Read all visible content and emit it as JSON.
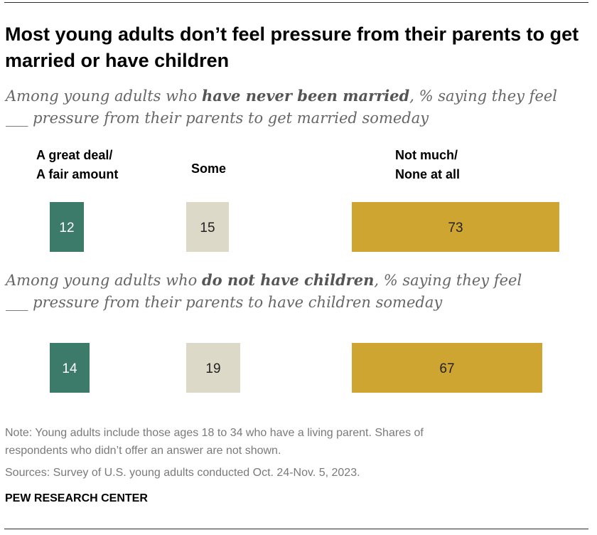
{
  "title": "Most young adults don’t feel pressure from their parents to get married or have children",
  "colors": {
    "great_deal": "#3c7b6a",
    "some": "#ddd9c8",
    "not_much": "#cfa532",
    "label_light": "#ffffff",
    "label_dark": "#222222"
  },
  "chart_data": {
    "type": "bar",
    "orientation": "horizontal-stacked-segments",
    "categories": [
      "A great deal/ A fair amount",
      "Some",
      "Not much/ None at all"
    ],
    "category_lines": [
      [
        "A great deal/",
        "A fair amount"
      ],
      [
        "Some"
      ],
      [
        "Not much/",
        "None at all"
      ]
    ],
    "panels": [
      {
        "subtitle_parts": {
          "pre": "Among young adults who ",
          "bold": "have never been married",
          "post": ", % saying they feel",
          "line2": "___ pressure from their parents to get married someday"
        },
        "values": [
          12,
          15,
          73
        ]
      },
      {
        "subtitle_parts": {
          "pre": "Among young adults who ",
          "bold": "do not have children",
          "post": ", % saying they feel",
          "line2": "___ pressure from their parents to have children someday"
        },
        "values": [
          14,
          19,
          67
        ]
      }
    ],
    "unit": "%"
  },
  "note": {
    "line1": "Note: Young adults include those ages 18 to 34 who have a living parent. Shares of",
    "line2": "respondents who didn’t offer an answer are not shown.",
    "sources": "Sources: Survey of U.S. young adults conducted Oct. 24-Nov. 5, 2023.",
    "org": "PEW RESEARCH CENTER"
  }
}
